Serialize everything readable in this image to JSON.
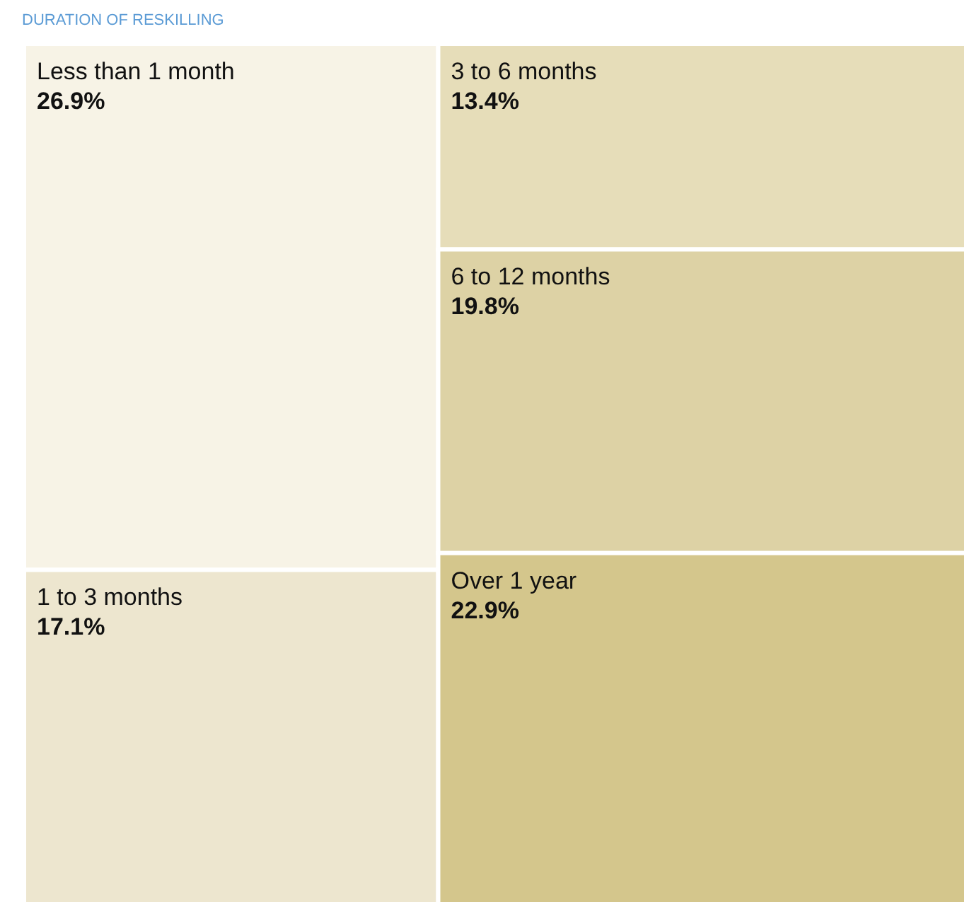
{
  "chart_data": {
    "type": "other",
    "title": "DURATION OF RESKILLING",
    "categories": [
      "Less than 1 month",
      "1 to 3 months",
      "3 to 6 months",
      "6 to 12 months",
      "Over 1 year"
    ],
    "values": [
      26.9,
      17.1,
      13.4,
      19.8,
      22.9
    ],
    "value_labels": [
      "26.9%",
      "17.1%",
      "13.4%",
      "19.8%",
      "22.9%"
    ],
    "colors": [
      "#f7f3e6",
      "#ede6cf",
      "#e6ddb9",
      "#ddd2a5",
      "#d4c68c"
    ]
  }
}
